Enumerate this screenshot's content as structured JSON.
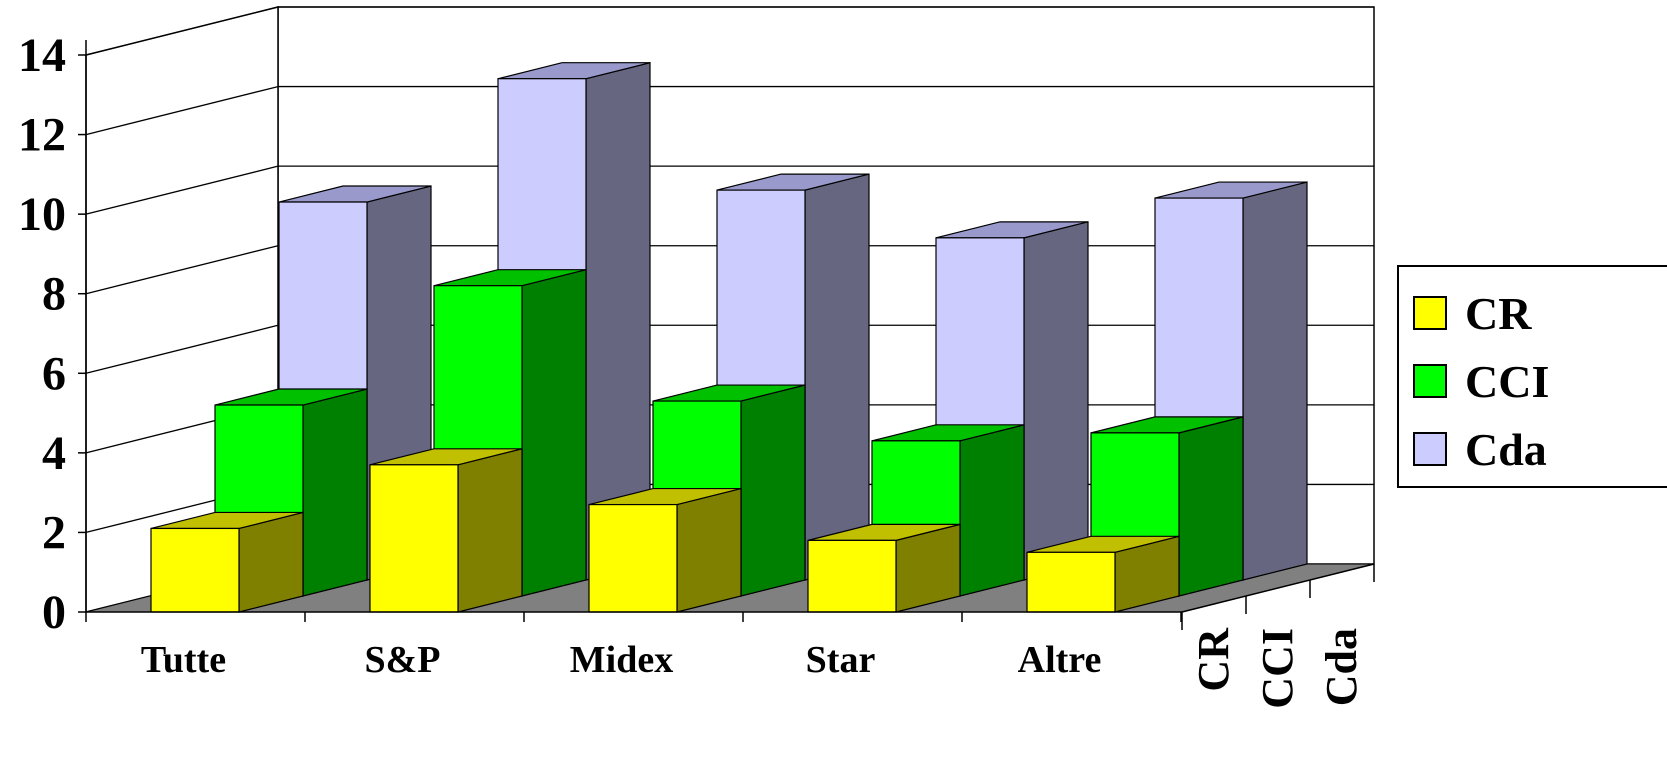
{
  "chart_data": {
    "type": "bar",
    "style": "3d-clustered-depth",
    "categories": [
      "Tutte",
      "S&P",
      "Midex",
      "Star",
      "Altre"
    ],
    "series": [
      {
        "name": "CR",
        "values": [
          2.1,
          3.7,
          2.7,
          1.8,
          1.5
        ],
        "front_color": "#ffff00",
        "side_color": "#808000",
        "top_color": "#c0c000"
      },
      {
        "name": "CCI",
        "values": [
          4.8,
          7.8,
          4.9,
          3.9,
          4.1
        ],
        "front_color": "#00ff00",
        "side_color": "#008000",
        "top_color": "#00c000"
      },
      {
        "name": "Cda",
        "values": [
          9.5,
          12.6,
          9.8,
          8.6,
          9.6
        ],
        "front_color": "#ccccff",
        "side_color": "#666680",
        "top_color": "#9999cc"
      }
    ],
    "yticks": [
      0,
      2,
      4,
      6,
      8,
      10,
      12,
      14
    ],
    "ylim": [
      0,
      14
    ],
    "title": "",
    "xlabel": "",
    "ylabel": "",
    "grid": true,
    "legend_position": "right",
    "floor_color": "#808080"
  }
}
